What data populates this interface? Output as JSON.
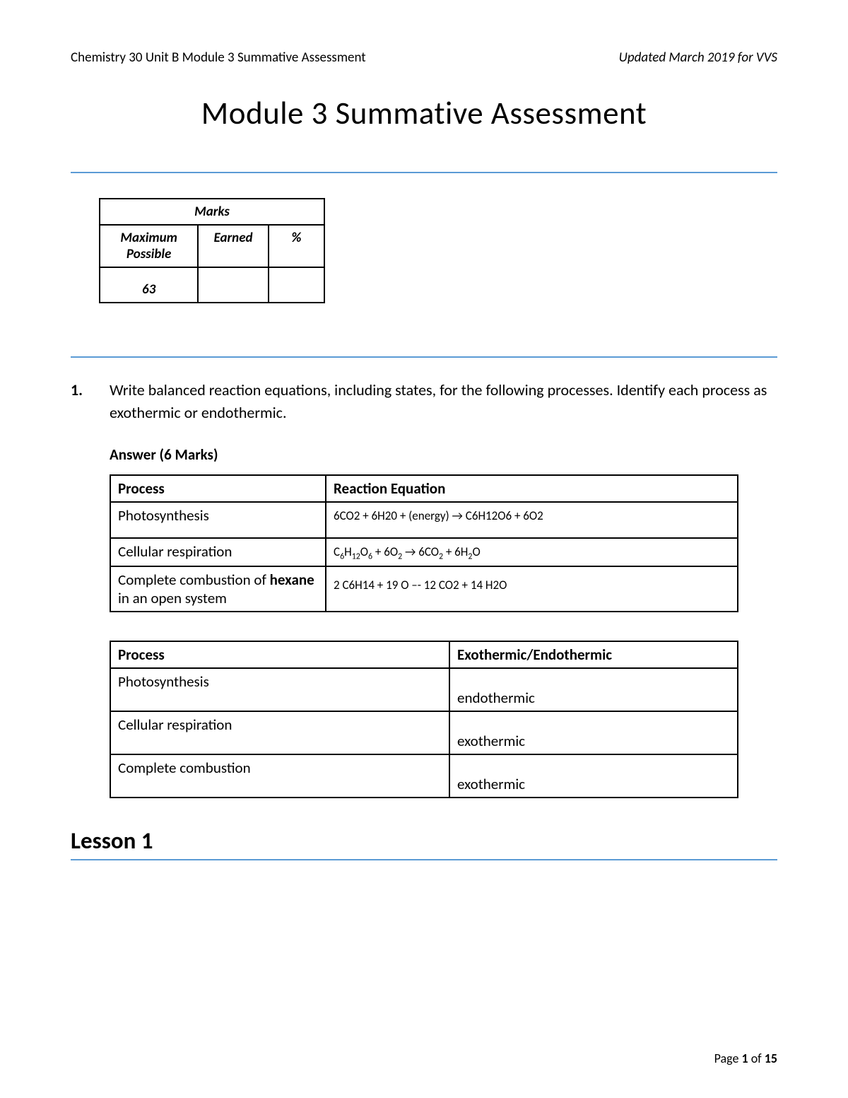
{
  "header": {
    "left": "Chemistry 30 Unit B Module 3 Summative Assessment",
    "right": "Updated March 2019 for VVS"
  },
  "title": "Module 3 Summative Assessment",
  "marks_table": {
    "title": "Marks",
    "columns": [
      "Maximum Possible",
      "Earned",
      "%"
    ],
    "max_possible": "63",
    "earned": "",
    "percent": ""
  },
  "question1": {
    "number": "1.",
    "text": "Write balanced reaction equations, including states, for the following processes.  Identify each process as exothermic or endothermic.",
    "answer_label": "Answer  (6 Marks)"
  },
  "reaction_table": {
    "headers": [
      "Process",
      "Reaction Equation"
    ],
    "rows": [
      {
        "process": "Photosynthesis",
        "equation": "6CO2 + 6H20 + (energy) → C6H12O6 + 6O2"
      },
      {
        "process": "Cellular respiration",
        "equation_html": "C<sub>6</sub>H<sub>12</sub>O<sub>6</sub> + 6O<sub>2</sub> → 6CO<sub>2</sub> + 6H<sub>2</sub>O"
      },
      {
        "process_html": "Complete combustion of <b>hexane</b> in an open system",
        "equation": "2 C6H14 + 19 O –- 12 CO2 + 14 H2O"
      }
    ]
  },
  "thermo_table": {
    "headers": [
      "Process",
      "Exothermic/Endothermic"
    ],
    "rows": [
      {
        "process": "Photosynthesis",
        "type": "endothermic"
      },
      {
        "process": "Cellular respiration",
        "type": "exothermic"
      },
      {
        "process": "Complete combustion",
        "type": "exothermic"
      }
    ]
  },
  "section_heading": "Lesson 1",
  "footer": {
    "prefix": "Page ",
    "current": "1",
    "of": " of ",
    "total": "15"
  },
  "colors": {
    "hr": "#5b9bd5",
    "text": "#000000",
    "border": "#000000",
    "background": "#ffffff"
  }
}
